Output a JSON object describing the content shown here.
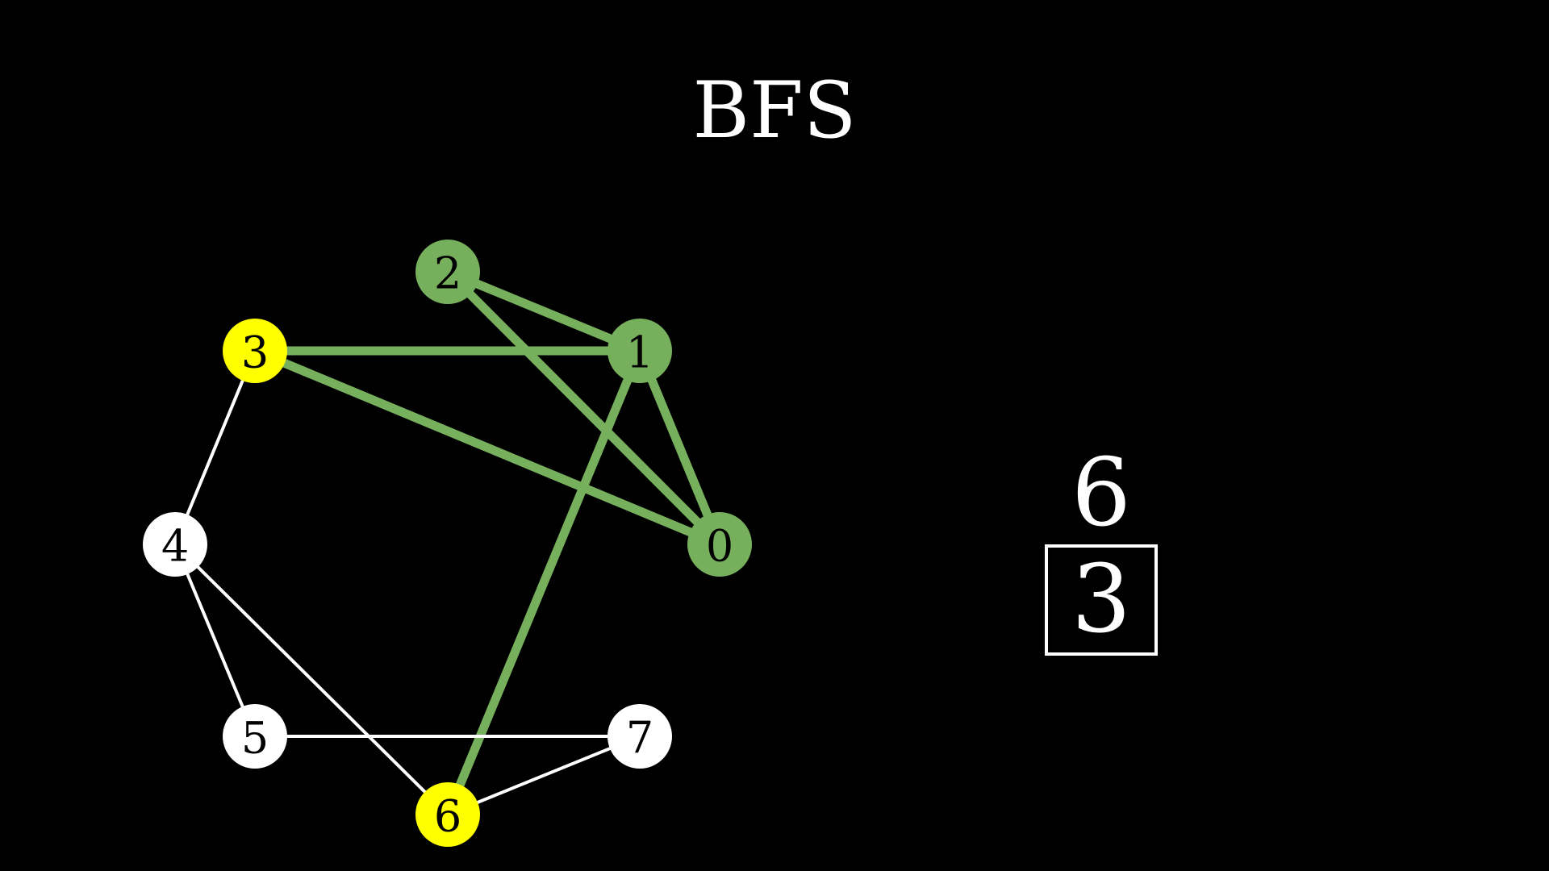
{
  "title": "BFS",
  "colors": {
    "background": "#000000",
    "visited": "#77b05d",
    "frontier": "#ffff00",
    "unvisited": "#ffffff",
    "label_dark": "#000000"
  },
  "graph": {
    "nodes": [
      {
        "id": "0",
        "state": "visited"
      },
      {
        "id": "1",
        "state": "visited"
      },
      {
        "id": "2",
        "state": "visited"
      },
      {
        "id": "3",
        "state": "frontier"
      },
      {
        "id": "4",
        "state": "unvisited"
      },
      {
        "id": "5",
        "state": "unvisited"
      },
      {
        "id": "6",
        "state": "frontier"
      },
      {
        "id": "7",
        "state": "unvisited"
      }
    ],
    "edges": [
      {
        "from": "2",
        "to": "1",
        "state": "visited"
      },
      {
        "from": "2",
        "to": "0",
        "state": "visited"
      },
      {
        "from": "3",
        "to": "1",
        "state": "visited"
      },
      {
        "from": "3",
        "to": "0",
        "state": "visited"
      },
      {
        "from": "1",
        "to": "0",
        "state": "visited"
      },
      {
        "from": "1",
        "to": "6",
        "state": "visited"
      },
      {
        "from": "3",
        "to": "4",
        "state": "unvisited"
      },
      {
        "from": "4",
        "to": "5",
        "state": "unvisited"
      },
      {
        "from": "4",
        "to": "6",
        "state": "unvisited"
      },
      {
        "from": "5",
        "to": "7",
        "state": "unvisited"
      },
      {
        "from": "6",
        "to": "7",
        "state": "unvisited"
      }
    ]
  },
  "queue": {
    "next_label": "6",
    "items": [
      "3"
    ]
  }
}
